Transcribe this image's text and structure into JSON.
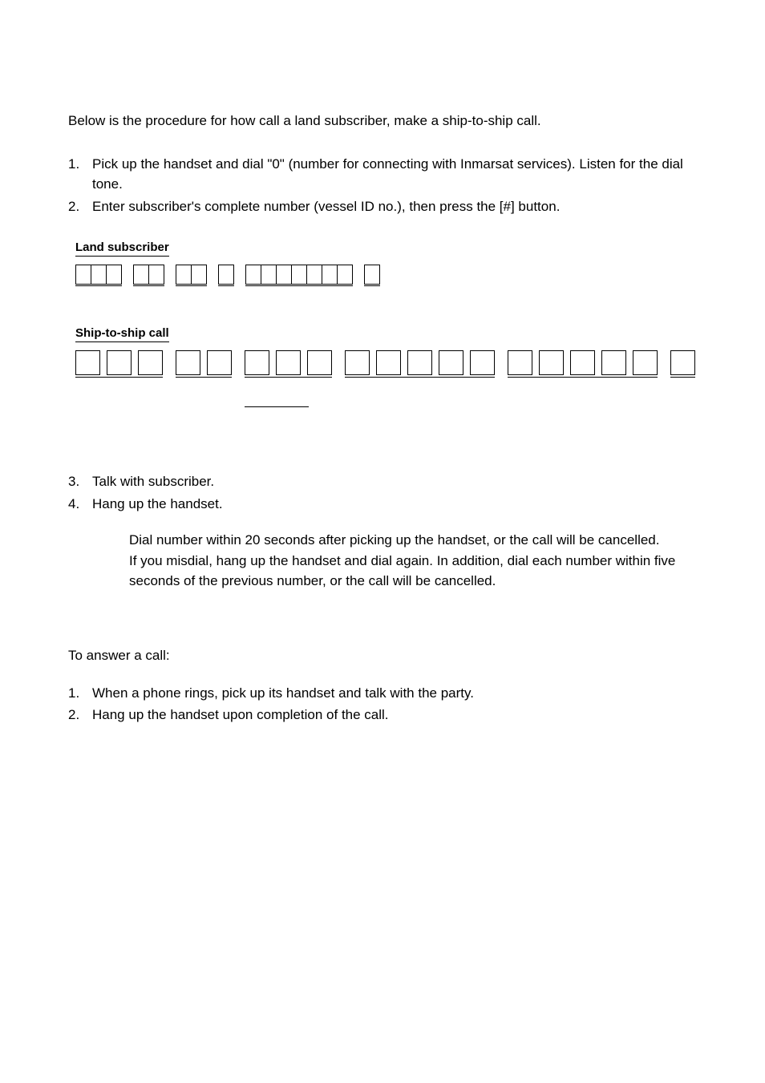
{
  "intro": "Below is the procedure for how call a land subscriber, make a ship-to-ship call.",
  "steps_a": [
    {
      "num": "1.",
      "text": "Pick up the handset and dial \"0\" (number for connecting with Inmarsat services). Listen for the dial tone."
    },
    {
      "num": "2.",
      "text": "Enter subscriber's complete number (vessel ID no.), then press the [#] button."
    }
  ],
  "land_label": "Land subscriber",
  "land_groups": [
    3,
    2,
    2,
    1,
    7,
    1
  ],
  "ship_label": "Ship-to-ship call",
  "ship_groups": [
    3,
    2,
    3,
    5,
    5,
    1
  ],
  "steps_b": [
    {
      "num": "3.",
      "text": "Talk with subscriber."
    },
    {
      "num": "4.",
      "text": "Hang up the handset."
    }
  ],
  "notes": [
    "Dial number within 20 seconds after picking up the handset, or the call will be cancelled.",
    "If you misdial, hang up the handset and dial again. In addition, dial each number within five seconds of the previous number, or the call will be cancelled."
  ],
  "answer_head": "To answer a call:",
  "steps_c": [
    {
      "num": "1.",
      "text": "When a phone rings, pick up its handset and talk with the party."
    },
    {
      "num": "2.",
      "text": "Hang up the handset upon completion of the call."
    }
  ],
  "colors": {
    "text": "#000000",
    "bg": "#ffffff"
  }
}
